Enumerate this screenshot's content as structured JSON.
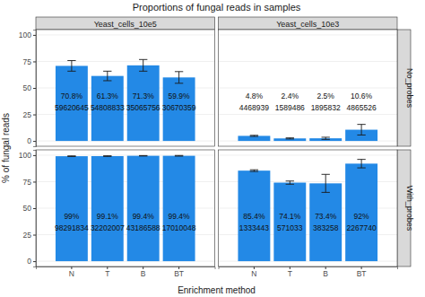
{
  "title": "Proportions of fungal reads in samples",
  "x_label": "Enrichment method",
  "y_label": "% of fungal reads",
  "facet_columns": [
    "Yeast_cells_10e5",
    "Yeast_cells_10e3"
  ],
  "facet_rows": [
    "No_probes",
    "With_probes"
  ],
  "chart_data": [
    {
      "type": "bar",
      "categories": [
        "N",
        "T",
        "B",
        "BT"
      ],
      "values": [
        70.8,
        61.3,
        71.3,
        59.9
      ],
      "value_labels": [
        "70.8%",
        "61.3%",
        "71.3%",
        "59.9%"
      ],
      "errors": [
        5,
        4.5,
        5.5,
        5.5
      ],
      "reads": [
        59620645,
        54808833,
        35065756,
        30670359
      ],
      "color": "#2389e6",
      "ylim": [
        -5,
        105
      ],
      "yticks": [
        0,
        25,
        50,
        75,
        100
      ],
      "grid": true,
      "data_labels": true,
      "tick_labels": "y"
    },
    {
      "type": "bar",
      "categories": [
        "N",
        "T",
        "B",
        "BT"
      ],
      "values": [
        4.8,
        2.4,
        2.5,
        10.6
      ],
      "value_labels": [
        "4.8%",
        "2.4%",
        "2.5%",
        "10.6%"
      ],
      "errors": [
        0.5,
        0.5,
        1,
        5
      ],
      "reads": [
        4468939,
        1589486,
        1895832,
        4865526
      ],
      "color": "#2389e6",
      "ylim": [
        -5,
        105
      ],
      "yticks": [
        0,
        25,
        50,
        75,
        100
      ],
      "grid": true,
      "data_labels": true,
      "tick_labels": false
    },
    {
      "type": "bar",
      "categories": [
        "N",
        "T",
        "B",
        "BT"
      ],
      "values": [
        99,
        99.1,
        99.4,
        99.4
      ],
      "value_labels": [
        "99%",
        "99.1%",
        "99.4%",
        "99.4%"
      ],
      "errors": [
        0.3,
        0.3,
        0.2,
        0.3
      ],
      "reads": [
        98291834,
        32202007,
        43186588,
        17010048
      ],
      "color": "#2389e6",
      "ylim": [
        -5,
        105
      ],
      "yticks": [
        0,
        25,
        50,
        75,
        100
      ],
      "grid": true,
      "data_labels": true,
      "tick_labels": true
    },
    {
      "type": "bar",
      "categories": [
        "N",
        "T",
        "B",
        "BT"
      ],
      "values": [
        85.4,
        74.1,
        73.4,
        92
      ],
      "value_labels": [
        "85.4%",
        "74.1%",
        "73.4%",
        "92%"
      ],
      "errors": [
        0.8,
        1.5,
        8.5,
        4
      ],
      "reads": [
        1333443,
        571033,
        383258,
        2267740
      ],
      "color": "#2389e6",
      "ylim": [
        -5,
        105
      ],
      "yticks": [
        0,
        25,
        50,
        75,
        100
      ],
      "grid": true,
      "data_labels": true,
      "tick_labels": "x"
    }
  ]
}
